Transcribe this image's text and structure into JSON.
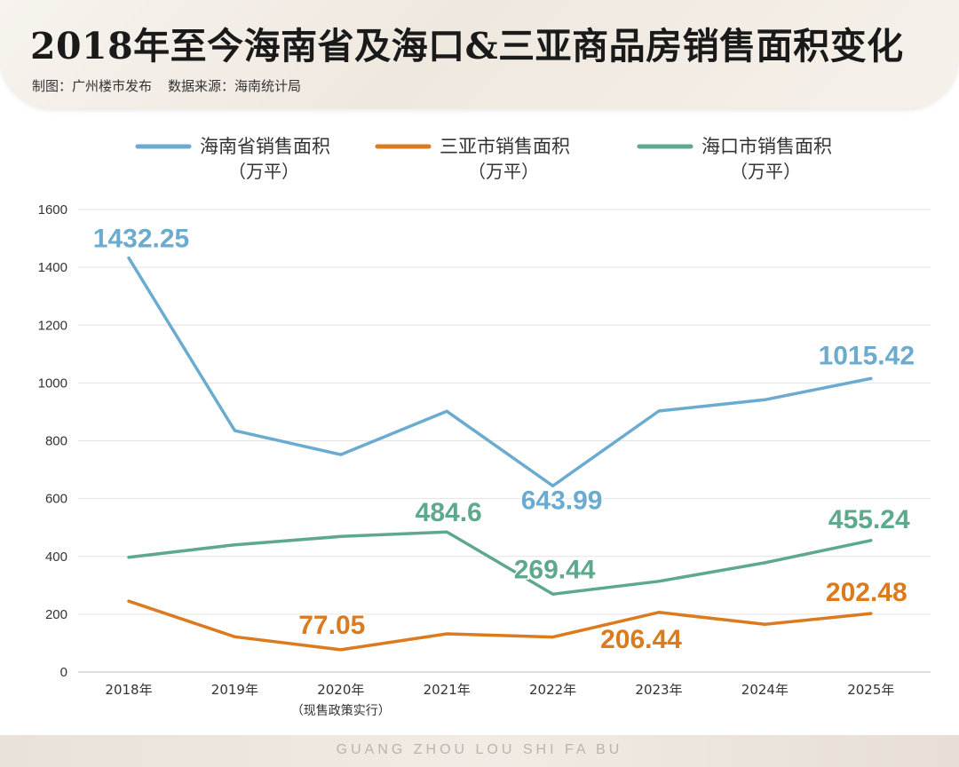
{
  "header": {
    "title": "2018年至今海南省及海口&三亚商品房销售面积变化",
    "maker": "制图：广州楼市发布",
    "source": "数据来源：海南统计局"
  },
  "footer": {
    "text": "GUANG ZHOU LOU SHI FA BU"
  },
  "chart_data": {
    "type": "line",
    "x": [
      "2018年",
      "2019年",
      "2020年",
      "2021年",
      "2022年",
      "2023年",
      "2024年",
      "2025年"
    ],
    "x_sublabels": [
      "",
      "",
      "（现售政策实行）",
      "",
      "",
      "",
      "",
      ""
    ],
    "ylim": [
      0,
      1600
    ],
    "yticks": [
      "0",
      "200",
      "400",
      "600",
      "800",
      "1000",
      "1200",
      "1400",
      "1600"
    ],
    "grid": true,
    "legend_position": "top",
    "series": [
      {
        "name": "海南省销售面积",
        "unit": "（万平）",
        "color": "#6aabcf",
        "values": [
          1432.25,
          835,
          752,
          902,
          643.99,
          903,
          942,
          1015.42
        ],
        "labels": [
          {
            "index": 0,
            "text": "1432.25"
          },
          {
            "index": 4,
            "text": "643.99"
          },
          {
            "index": 7,
            "text": "1015.42"
          }
        ]
      },
      {
        "name": "三亚市销售面积",
        "unit": "（万平）",
        "color": "#dc7a1e",
        "values": [
          245,
          122,
          77.05,
          132,
          121,
          206.44,
          165,
          202.48
        ],
        "labels": [
          {
            "index": 2,
            "text": "77.05"
          },
          {
            "index": 5,
            "text": "206.44"
          },
          {
            "index": 7,
            "text": "202.48"
          }
        ]
      },
      {
        "name": "海口市销售面积",
        "unit": "（万平）",
        "color": "#5ea98b",
        "values": [
          397,
          440,
          469,
          484.6,
          269.44,
          314,
          378,
          455.24
        ],
        "labels": [
          {
            "index": 3,
            "text": "484.6"
          },
          {
            "index": 4,
            "text": "269.44"
          },
          {
            "index": 7,
            "text": "455.24"
          }
        ]
      }
    ]
  }
}
